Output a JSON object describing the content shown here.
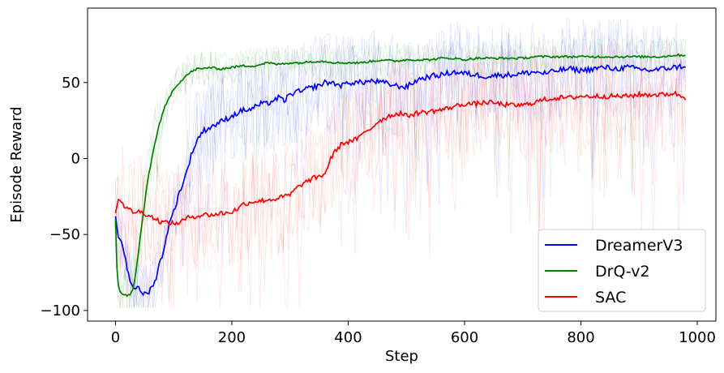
{
  "chart_data": {
    "type": "line",
    "xlabel": "Step",
    "ylabel": "Episode Reward",
    "xlim": [
      -48,
      1032
    ],
    "ylim": [
      -107,
      99
    ],
    "xticks": [
      0,
      200,
      400,
      600,
      800,
      1000
    ],
    "yticks": [
      -100,
      -50,
      0,
      50
    ],
    "xtick_labels": [
      "0",
      "200",
      "400",
      "600",
      "800",
      "1000"
    ],
    "ytick_labels": [
      "−100",
      "−50",
      "0",
      "50"
    ],
    "grid": false,
    "legend": "bottom-right",
    "series": [
      {
        "name": "DreamerV3",
        "color": "#0000ff",
        "x": [
          0,
          5,
          10,
          15,
          20,
          25,
          30,
          35,
          40,
          45,
          50,
          55,
          60,
          65,
          70,
          75,
          80,
          85,
          90,
          95,
          100,
          110,
          120,
          130,
          140,
          150,
          160,
          170,
          180,
          190,
          200,
          210,
          220,
          230,
          240,
          250,
          260,
          270,
          280,
          290,
          300,
          310,
          320,
          330,
          340,
          350,
          360,
          370,
          380,
          390,
          400,
          420,
          440,
          460,
          480,
          500,
          520,
          540,
          560,
          580,
          600,
          620,
          640,
          660,
          680,
          700,
          720,
          740,
          760,
          780,
          800,
          820,
          840,
          860,
          880,
          900,
          920,
          940,
          960,
          980
        ],
        "y": [
          -38,
          -52,
          -54,
          -62,
          -72,
          -80,
          -84,
          -85,
          -86,
          -88,
          -89,
          -89,
          -86,
          -82,
          -79,
          -70,
          -64,
          -56,
          -47,
          -40,
          -35,
          -22,
          -12,
          2,
          12,
          18,
          20,
          22,
          24,
          26,
          28,
          30,
          32,
          32,
          34,
          36,
          36,
          38,
          40,
          38,
          42,
          44,
          44,
          46,
          47,
          48,
          50,
          50,
          49,
          48,
          50,
          50,
          51,
          50,
          48,
          47,
          52,
          54,
          55,
          57,
          56,
          55,
          54,
          55,
          55,
          56,
          57,
          56,
          58,
          59,
          58,
          59,
          60,
          59,
          60,
          59,
          58,
          59,
          60,
          61
        ]
      },
      {
        "name": "DrQ-v2",
        "color": "#008000",
        "x": [
          0,
          3,
          6,
          10,
          15,
          20,
          25,
          30,
          35,
          40,
          45,
          50,
          55,
          60,
          65,
          70,
          75,
          80,
          85,
          90,
          95,
          100,
          110,
          120,
          130,
          140,
          150,
          160,
          180,
          200,
          220,
          240,
          260,
          280,
          300,
          320,
          340,
          360,
          380,
          400,
          420,
          440,
          460,
          480,
          500,
          520,
          540,
          560,
          580,
          600,
          620,
          640,
          660,
          680,
          700,
          720,
          740,
          760,
          780,
          800,
          820,
          840,
          860,
          880,
          900,
          920,
          940,
          960,
          980
        ],
        "y": [
          -40,
          -78,
          -86,
          -89,
          -90,
          -90,
          -90,
          -86,
          -75,
          -60,
          -45,
          -30,
          -15,
          -5,
          5,
          14,
          22,
          28,
          34,
          38,
          42,
          46,
          50,
          54,
          57,
          59,
          59,
          60,
          59,
          60,
          61,
          61,
          63,
          62,
          63,
          63,
          64,
          64,
          63,
          63,
          63,
          64,
          65,
          64,
          65,
          65,
          65,
          66,
          66,
          65,
          66,
          66,
          66,
          66,
          66,
          67,
          67,
          67,
          67,
          67,
          67,
          67,
          67,
          67,
          67,
          67,
          67,
          68,
          68
        ]
      },
      {
        "name": "SAC",
        "color": "#ff0000",
        "x": [
          0,
          5,
          10,
          15,
          20,
          25,
          30,
          40,
          50,
          60,
          70,
          80,
          90,
          100,
          110,
          120,
          130,
          140,
          150,
          160,
          170,
          180,
          190,
          200,
          210,
          220,
          230,
          240,
          250,
          260,
          270,
          280,
          290,
          300,
          310,
          320,
          330,
          340,
          350,
          360,
          370,
          380,
          390,
          400,
          410,
          420,
          430,
          440,
          450,
          460,
          470,
          480,
          490,
          500,
          520,
          540,
          560,
          580,
          600,
          620,
          640,
          660,
          680,
          700,
          720,
          740,
          760,
          780,
          800,
          820,
          840,
          860,
          880,
          900,
          920,
          940,
          960,
          980
        ],
        "y": [
          -36,
          -27,
          -28,
          -31,
          -33,
          -34,
          -35,
          -35,
          -36,
          -38,
          -40,
          -42,
          -42,
          -43,
          -42,
          -40,
          -38,
          -38,
          -37,
          -37,
          -37,
          -36,
          -36,
          -35,
          -33,
          -30,
          -29,
          -28,
          -28,
          -27,
          -27,
          -26,
          -25,
          -24,
          -20,
          -17,
          -15,
          -13,
          -12,
          -10,
          0,
          6,
          10,
          11,
          12,
          14,
          18,
          20,
          24,
          26,
          28,
          29,
          30,
          28,
          30,
          31,
          32,
          34,
          36,
          36,
          37,
          36,
          35,
          35,
          37,
          39,
          40,
          40,
          41,
          41,
          41,
          41,
          41,
          42,
          42,
          42,
          43,
          40
        ]
      }
    ]
  }
}
